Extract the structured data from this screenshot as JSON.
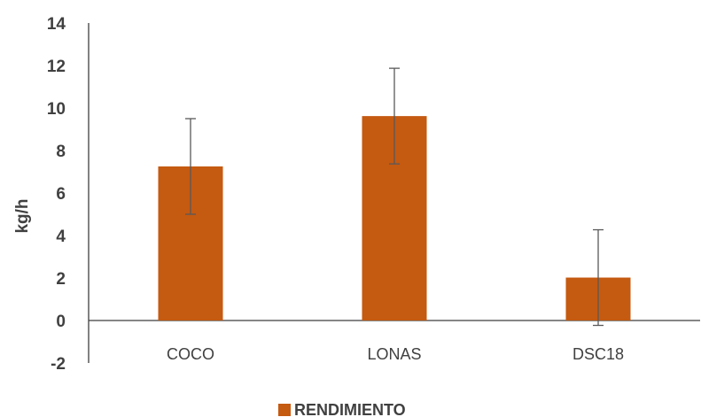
{
  "chart_data": {
    "type": "bar",
    "categories": [
      "COCO",
      "LONAS",
      "DSC18"
    ],
    "series": [
      {
        "name": "RENDIMIENTO",
        "values": [
          7.25,
          9.62,
          2.02
        ],
        "error": [
          2.25,
          2.25,
          2.25
        ],
        "color": "#c55a11"
      }
    ],
    "ylabel": "kg/h",
    "xlabel": "",
    "ylim": [
      -2,
      14
    ],
    "yticks": [
      -2,
      0,
      2,
      4,
      6,
      8,
      10,
      12,
      14
    ],
    "grid": false,
    "legend_position": "bottom"
  }
}
